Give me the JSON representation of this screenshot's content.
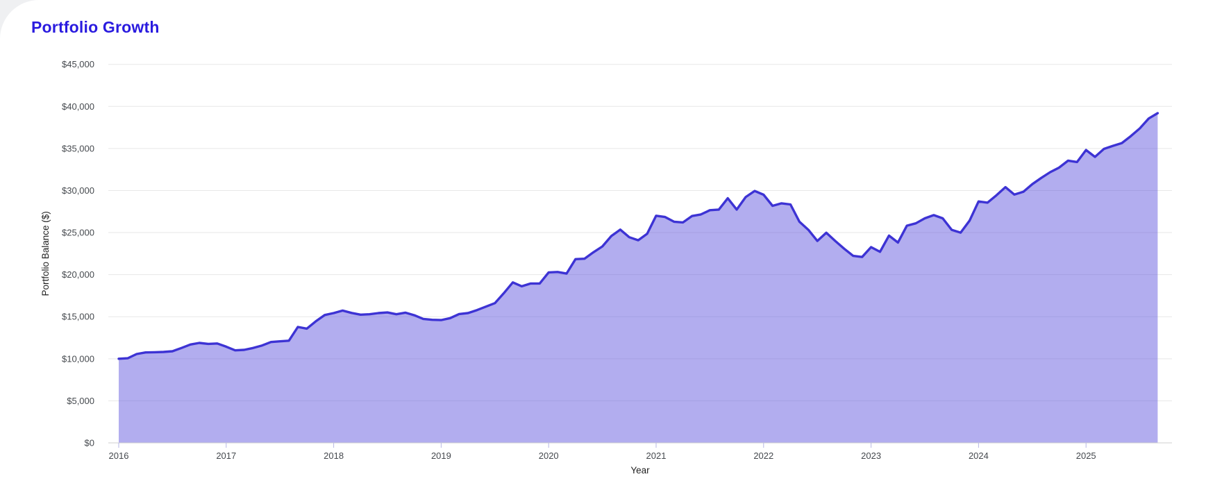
{
  "header": {
    "title": "Portfolio Growth"
  },
  "colors": {
    "title": "#2a1bdf",
    "page_bg": "#eff0f2",
    "card_bg": "#ffffff",
    "line": "#3d33d4",
    "fill": "#5f54dd",
    "fill_opacity": 0.48,
    "grid": "#e7e7e7",
    "baseline": "#cfcfcf",
    "tick_mark": "#b7b7e6",
    "tick_text": "#45494e",
    "axis_title": "#1f1f1f"
  },
  "chart_data": {
    "type": "area",
    "title": "Portfolio Growth",
    "xlabel": "Year",
    "ylabel": "Portfolio Balance ($)",
    "legend": "none",
    "grid": true,
    "ylim": [
      0,
      45000
    ],
    "y_ticks": [
      {
        "value": 0,
        "label": "$0"
      },
      {
        "value": 5000,
        "label": "$5,000"
      },
      {
        "value": 10000,
        "label": "$10,000"
      },
      {
        "value": 15000,
        "label": "$15,000"
      },
      {
        "value": 20000,
        "label": "$20,000"
      },
      {
        "value": 25000,
        "label": "$25,000"
      },
      {
        "value": 30000,
        "label": "$30,000"
      },
      {
        "value": 35000,
        "label": "$35,000"
      },
      {
        "value": 40000,
        "label": "$40,000"
      },
      {
        "value": 45000,
        "label": "$45,000"
      }
    ],
    "x_tick_labels": [
      "2016",
      "2017",
      "2018",
      "2019",
      "2020",
      "2021",
      "2022",
      "2023",
      "2024",
      "2025"
    ],
    "frequency": "monthly",
    "x_start_month": "2016-01",
    "series": [
      {
        "name": "Portfolio Balance",
        "values": [
          10000,
          10060,
          10560,
          10750,
          10780,
          10810,
          10890,
          11280,
          11690,
          11880,
          11770,
          11820,
          11440,
          11000,
          11060,
          11280,
          11580,
          11990,
          12070,
          12150,
          13780,
          13580,
          14450,
          15200,
          15430,
          15730,
          15450,
          15240,
          15290,
          15430,
          15510,
          15290,
          15480,
          15180,
          14740,
          14630,
          14600,
          14830,
          15320,
          15430,
          15790,
          16200,
          16610,
          17800,
          19080,
          18620,
          18950,
          18950,
          20270,
          20320,
          20130,
          21840,
          21890,
          22660,
          23350,
          24590,
          25350,
          24450,
          24090,
          24860,
          27000,
          26850,
          26290,
          26210,
          26970,
          27160,
          27660,
          27740,
          29080,
          27740,
          29220,
          29950,
          29500,
          28180,
          28480,
          28350,
          26290,
          25330,
          24010,
          24980,
          24010,
          23080,
          22230,
          22100,
          23270,
          22720,
          24640,
          23820,
          25820,
          26100,
          26700,
          27080,
          26700,
          25330,
          25000,
          26420,
          28700,
          28560,
          29440,
          30400,
          29520,
          29850,
          30760,
          31500,
          32180,
          32730,
          33550,
          33390,
          34820,
          34000,
          34950,
          35310,
          35640,
          36470,
          37380,
          38560,
          39200
        ]
      }
    ]
  }
}
